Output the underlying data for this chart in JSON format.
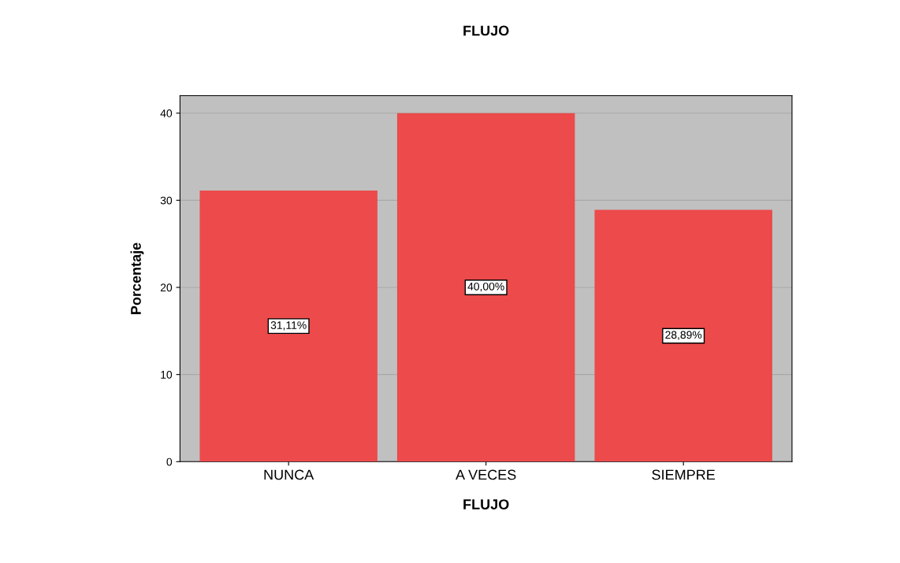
{
  "chart_data": {
    "type": "bar",
    "title": "FLUJO",
    "xlabel": "FLUJO",
    "ylabel": "Porcentaje",
    "categories": [
      "NUNCA",
      "A VECES",
      "SIEMPRE"
    ],
    "values": [
      31.11,
      40.0,
      28.89
    ],
    "value_labels": [
      "31,11%",
      "40,00%",
      "28,89%"
    ],
    "color": "#ec4a4b",
    "ylim": [
      0,
      42
    ],
    "yticks": [
      0,
      10,
      20,
      30,
      40
    ],
    "grid": "y",
    "legend": false
  }
}
